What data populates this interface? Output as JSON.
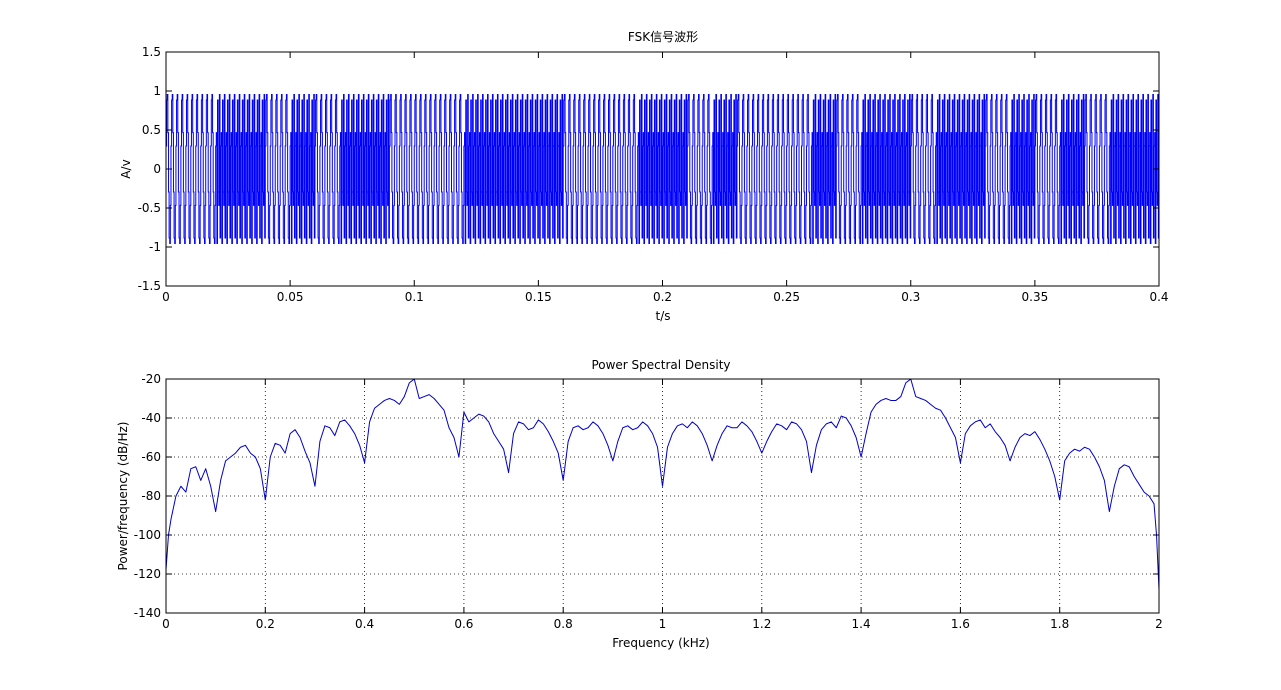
{
  "chart_data": [
    {
      "type": "line",
      "title": "FSK信号波形",
      "xlabel": "t/s",
      "ylabel": "A/v",
      "xlim": [
        0,
        0.4
      ],
      "ylim": [
        -1.5,
        1.5
      ],
      "xticks": [
        0,
        0.05,
        0.1,
        0.15,
        0.2,
        0.25,
        0.3,
        0.35,
        0.4
      ],
      "xtick_labels": [
        "0",
        "0.05",
        "0.1",
        "0.15",
        "0.2",
        "0.25",
        "0.3",
        "0.35",
        "0.4"
      ],
      "yticks": [
        -1.5,
        -1,
        -0.5,
        0,
        0.5,
        1,
        1.5
      ],
      "ytick_labels": [
        "-1.5",
        "-1",
        "-0.5",
        "0",
        "0.5",
        "1",
        "1.5"
      ],
      "grid": false,
      "line_color": "#0000ff",
      "sample_rate_hz": 4000,
      "bit_duration_s": 0.01,
      "bit_frequencies_hz": [
        500,
        1500
      ],
      "bits": [
        0,
        0,
        1,
        1,
        0,
        1,
        0,
        1,
        1,
        0,
        0,
        0,
        1,
        1,
        1,
        1,
        0,
        0,
        0,
        1,
        1,
        0,
        1,
        0,
        0,
        0,
        1,
        0,
        1,
        1,
        0,
        1,
        1,
        0,
        1,
        0,
        1,
        0,
        1,
        1
      ]
    },
    {
      "type": "line",
      "title": "Power Spectral Density",
      "xlabel": "Frequency (kHz)",
      "ylabel": "Power/frequency (dB/Hz)",
      "xlim": [
        0,
        2
      ],
      "ylim": [
        -140,
        -20
      ],
      "xticks": [
        0,
        0.2,
        0.4,
        0.6,
        0.8,
        1,
        1.2,
        1.4,
        1.6,
        1.8,
        2
      ],
      "xtick_labels": [
        "0",
        "0.2",
        "0.4",
        "0.6",
        "0.8",
        "1",
        "1.2",
        "1.4",
        "1.6",
        "1.8",
        "2"
      ],
      "yticks": [
        -140,
        -120,
        -100,
        -80,
        -60,
        -40,
        -20
      ],
      "ytick_labels": [
        "-140",
        "-120",
        "-100",
        "-80",
        "-60",
        "-40",
        "-20"
      ],
      "grid": true,
      "line_color": "#0000cc",
      "x": [
        0,
        0.005,
        0.01,
        0.02,
        0.03,
        0.04,
        0.05,
        0.06,
        0.07,
        0.08,
        0.09,
        0.1,
        0.11,
        0.12,
        0.13,
        0.14,
        0.15,
        0.16,
        0.17,
        0.18,
        0.19,
        0.2,
        0.21,
        0.22,
        0.23,
        0.24,
        0.25,
        0.26,
        0.27,
        0.28,
        0.29,
        0.3,
        0.31,
        0.32,
        0.33,
        0.34,
        0.35,
        0.36,
        0.37,
        0.38,
        0.39,
        0.4,
        0.41,
        0.42,
        0.43,
        0.44,
        0.45,
        0.46,
        0.47,
        0.48,
        0.49,
        0.5,
        0.51,
        0.52,
        0.53,
        0.54,
        0.55,
        0.56,
        0.57,
        0.58,
        0.59,
        0.6,
        0.61,
        0.62,
        0.63,
        0.64,
        0.65,
        0.66,
        0.67,
        0.68,
        0.69,
        0.7,
        0.71,
        0.72,
        0.73,
        0.74,
        0.75,
        0.76,
        0.77,
        0.78,
        0.79,
        0.8,
        0.81,
        0.82,
        0.83,
        0.84,
        0.85,
        0.86,
        0.87,
        0.88,
        0.89,
        0.9,
        0.91,
        0.92,
        0.93,
        0.94,
        0.95,
        0.96,
        0.97,
        0.98,
        0.99,
        1.0,
        1.01,
        1.02,
        1.03,
        1.04,
        1.05,
        1.06,
        1.07,
        1.08,
        1.09,
        1.1,
        1.11,
        1.12,
        1.13,
        1.14,
        1.15,
        1.16,
        1.17,
        1.18,
        1.19,
        1.2,
        1.21,
        1.22,
        1.23,
        1.24,
        1.25,
        1.26,
        1.27,
        1.28,
        1.29,
        1.3,
        1.31,
        1.32,
        1.33,
        1.34,
        1.35,
        1.36,
        1.37,
        1.38,
        1.39,
        1.4,
        1.41,
        1.42,
        1.43,
        1.44,
        1.45,
        1.46,
        1.47,
        1.48,
        1.49,
        1.5,
        1.51,
        1.52,
        1.53,
        1.54,
        1.55,
        1.56,
        1.57,
        1.58,
        1.59,
        1.6,
        1.61,
        1.62,
        1.63,
        1.64,
        1.65,
        1.66,
        1.67,
        1.68,
        1.69,
        1.7,
        1.71,
        1.72,
        1.73,
        1.74,
        1.75,
        1.76,
        1.77,
        1.78,
        1.79,
        1.8,
        1.81,
        1.82,
        1.83,
        1.84,
        1.85,
        1.86,
        1.87,
        1.88,
        1.89,
        1.9,
        1.91,
        1.92,
        1.93,
        1.94,
        1.95,
        1.96,
        1.97,
        1.98,
        1.99,
        1.995,
        2.0
      ],
      "y": [
        -118,
        -100,
        -92,
        -80,
        -75,
        -78,
        -66,
        -65,
        -72,
        -66,
        -75,
        -88,
        -72,
        -62,
        -60,
        -58,
        -55,
        -54,
        -58,
        -60,
        -66,
        -82,
        -60,
        -53,
        -54,
        -58,
        -48,
        -46,
        -50,
        -57,
        -63,
        -75,
        -52,
        -44,
        -45,
        -49,
        -42,
        -41,
        -44,
        -48,
        -54,
        -63,
        -42,
        -35,
        -33,
        -31,
        -30,
        -31,
        -33,
        -29,
        -22,
        -20,
        -30,
        -29,
        -28,
        -30,
        -33,
        -36,
        -45,
        -50,
        -60,
        -37,
        -42,
        -40,
        -38,
        -39,
        -42,
        -48,
        -52,
        -56,
        -68,
        -48,
        -42,
        -43,
        -46,
        -45,
        -41,
        -43,
        -47,
        -52,
        -58,
        -72,
        -52,
        -45,
        -44,
        -46,
        -45,
        -42,
        -44,
        -48,
        -54,
        -62,
        -52,
        -45,
        -44,
        -46,
        -45,
        -42,
        -44,
        -48,
        -55,
        -75,
        -55,
        -48,
        -44,
        -43,
        -45,
        -42,
        -44,
        -48,
        -54,
        -62,
        -54,
        -48,
        -44,
        -45,
        -45,
        -42,
        -44,
        -47,
        -52,
        -58,
        -52,
        -47,
        -43,
        -44,
        -46,
        -42,
        -43,
        -46,
        -52,
        -68,
        -54,
        -46,
        -43,
        -42,
        -45,
        -39,
        -40,
        -44,
        -50,
        -60,
        -48,
        -37,
        -33,
        -31,
        -30,
        -31,
        -31,
        -29,
        -22,
        -20,
        -29,
        -30,
        -31,
        -33,
        -35,
        -36,
        -40,
        -45,
        -50,
        -63,
        -48,
        -44,
        -42,
        -41,
        -45,
        -43,
        -47,
        -50,
        -54,
        -62,
        -55,
        -50,
        -48,
        -49,
        -47,
        -51,
        -56,
        -62,
        -70,
        -82,
        -62,
        -58,
        -56,
        -57,
        -55,
        -56,
        -60,
        -65,
        -72,
        -88,
        -75,
        -66,
        -64,
        -65,
        -70,
        -74,
        -78,
        -80,
        -84,
        -100,
        -128
      ]
    }
  ]
}
